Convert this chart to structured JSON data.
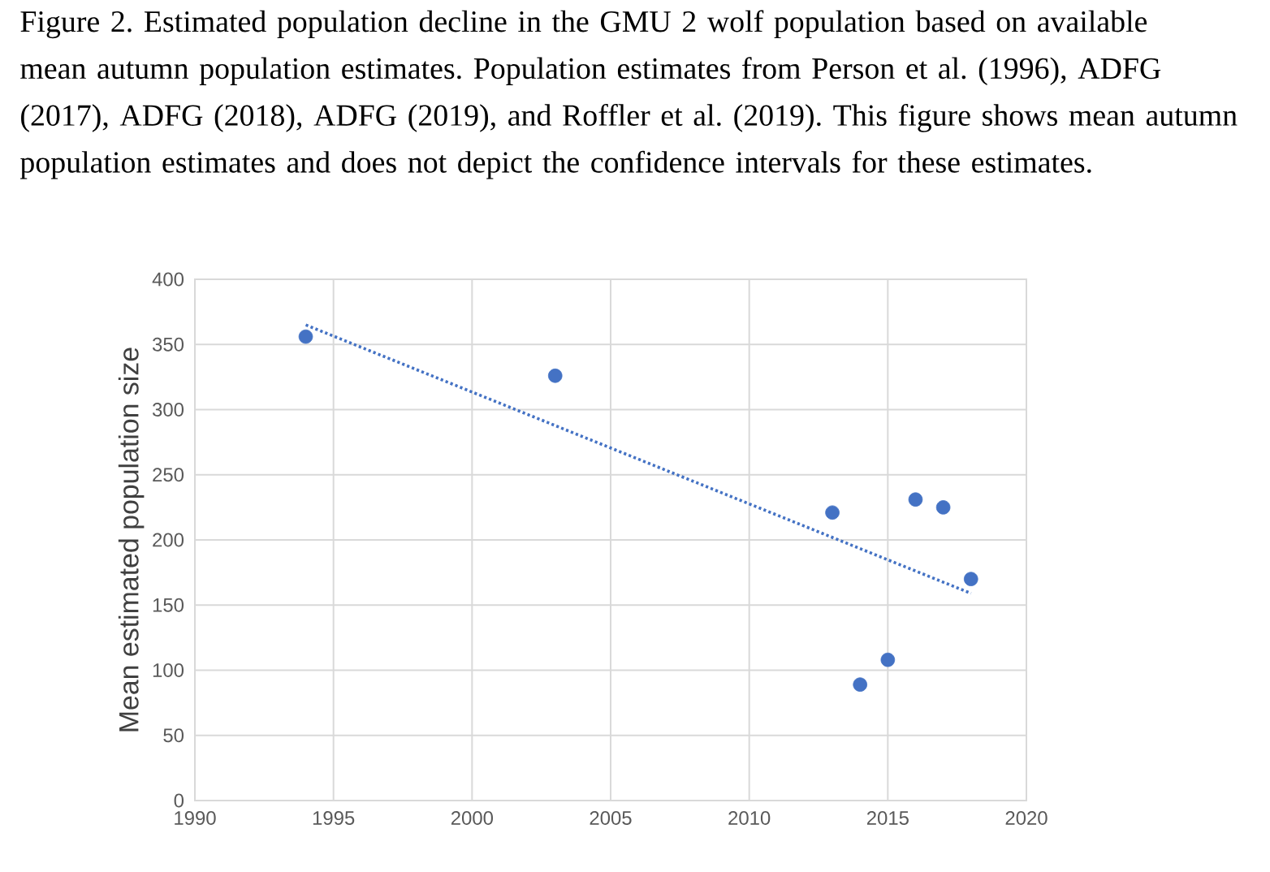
{
  "chart_data": {
    "type": "scatter",
    "title": "Figure 2. Estimated population decline in the GMU 2 wolf population based on available mean autumn population estimates. Population estimates from Person et al. (1996), ADFG (2017), ADFG (2018), ADFG (2019), and Roffler et al. (2019). This figure shows mean autumn population estimates and does not depict the confidence intervals for these estimates.",
    "ylabel": "Mean estimated population size",
    "xlim": [
      1990,
      2020
    ],
    "xticks": [
      1990,
      1995,
      2000,
      2005,
      2010,
      2015,
      2020
    ],
    "ylim": [
      0,
      400
    ],
    "yticks": [
      0,
      50,
      100,
      150,
      200,
      250,
      300,
      350,
      400
    ],
    "grid": true,
    "marker": "circle",
    "series": [
      {
        "color": "#4472c4",
        "x": [
          1994,
          2003,
          2013,
          2014,
          2015,
          2016,
          2017,
          2018
        ],
        "values": [
          356,
          326,
          221,
          89,
          108,
          231,
          225,
          170
        ]
      },
      {
        "type": "line",
        "color": "#4472c4",
        "marker": "none",
        "line_style": "dotted",
        "x": [
          1994,
          2018
        ],
        "values": [
          365,
          159
        ]
      }
    ]
  }
}
